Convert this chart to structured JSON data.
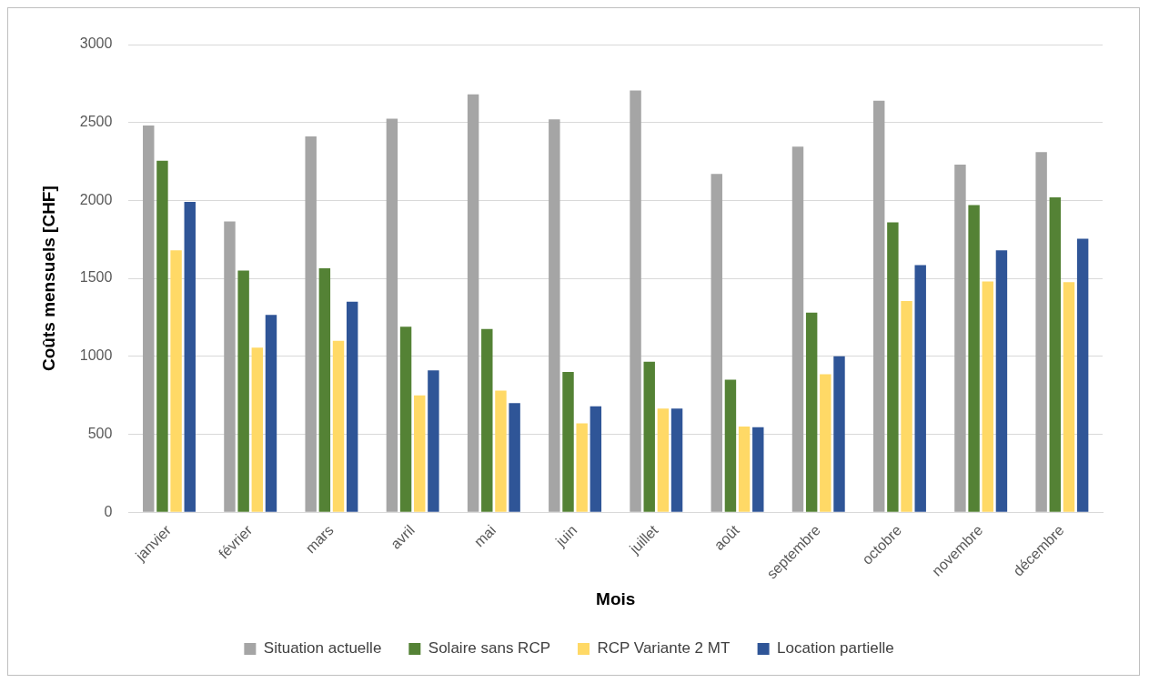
{
  "chart_data": {
    "type": "bar",
    "xlabel": "Mois",
    "ylabel": "Coûts mensuels [CHF]",
    "categories": [
      "janvier",
      "février",
      "mars",
      "avril",
      "mai",
      "juin",
      "juillet",
      "août",
      "septembre",
      "octobre",
      "novembre",
      "décembre"
    ],
    "series": [
      {
        "name": "Situation actuelle",
        "color": "#a5a5a5",
        "values": [
          2480,
          1865,
          2410,
          2525,
          2680,
          2520,
          2705,
          2170,
          2345,
          2640,
          2230,
          2310
        ]
      },
      {
        "name": "Solaire sans RCP",
        "color": "#548235",
        "values": [
          2255,
          1550,
          1565,
          1190,
          1175,
          900,
          965,
          850,
          1280,
          1860,
          1970,
          2020
        ]
      },
      {
        "name": "RCP Variante 2 MT",
        "color": "#ffd966",
        "values": [
          1680,
          1055,
          1100,
          750,
          780,
          570,
          665,
          550,
          885,
          1355,
          1480,
          1475
        ]
      },
      {
        "name": "Location partielle",
        "color": "#2f5597",
        "values": [
          1990,
          1265,
          1350,
          910,
          700,
          680,
          665,
          545,
          1000,
          1585,
          1680,
          1755
        ]
      }
    ],
    "ylim": [
      0,
      3000
    ],
    "yticks": [
      0,
      500,
      1000,
      1500,
      2000,
      2500,
      3000
    ],
    "grid": "y",
    "legend": "bottom"
  }
}
